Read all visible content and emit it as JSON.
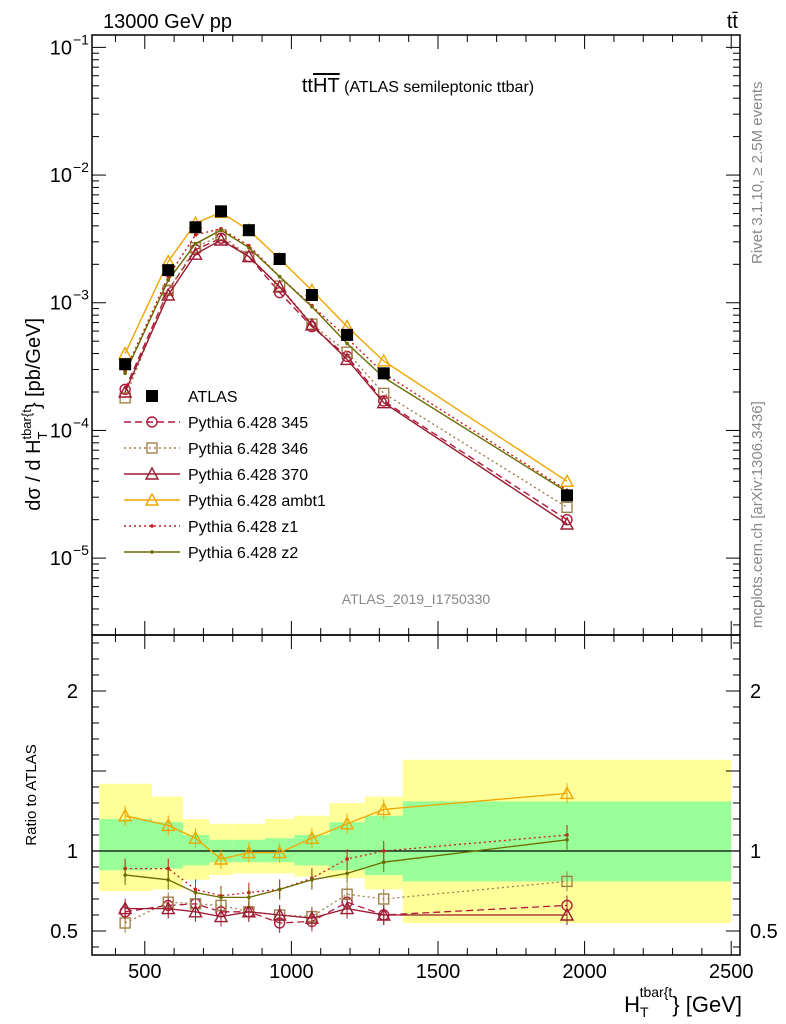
{
  "header": {
    "left": "13000 GeV pp",
    "right": "tt̄"
  },
  "side_labels": {
    "rivet": "Rivet 3.1.10, ≥ 2.5M events",
    "mcplots": "mcplots.cern.ch [arXiv:1306.3436]"
  },
  "chart_data": [
    {
      "type": "line",
      "title": "tt̅H̅T̅ (ATLAS semileptonic ttbar)",
      "title_main": "tt",
      "title_over": "HT",
      "title_rest": " (ATLAS semileptonic ttbar)",
      "analysis_id": "ATLAS_2019_I1750330",
      "ylabel": "dσ / d H_T^{tbar{t}} [pb/GeV]",
      "ylabel_main": "dσ / d H",
      "ylabel_sub": "T",
      "ylabel_sup": "tbar{t",
      "ylabel_tail": "} [pb/GeV]",
      "yscale": "log",
      "ylim": [
        2.5e-06,
        0.125
      ],
      "xlim": [
        320,
        2530
      ],
      "yticks": [
        {
          "v": 1e-05,
          "base": "10",
          "exp": "−5"
        },
        {
          "v": 0.0001,
          "base": "10",
          "exp": "−4"
        },
        {
          "v": 0.001,
          "base": "10",
          "exp": "−3"
        },
        {
          "v": 0.01,
          "base": "10",
          "exp": "−2"
        },
        {
          "v": 0.1,
          "base": "10",
          "exp": "−1"
        }
      ],
      "legend_position": "bottom-left",
      "x": [
        433,
        580,
        673,
        760,
        855,
        960,
        1070,
        1190,
        1315,
        1940
      ],
      "series": [
        {
          "name": "ATLAS",
          "color": "#000000",
          "marker": "square",
          "line": "none",
          "values": [
            0.00033,
            0.0018,
            0.0039,
            0.0052,
            0.0037,
            0.0022,
            0.00115,
            0.00056,
            0.00028,
            3.1e-05
          ]
        },
        {
          "name": "Pythia 6.428 345",
          "color": "#b2183b",
          "marker": "circle",
          "line": "dashed",
          "values": [
            0.00021,
            0.00125,
            0.0026,
            0.0032,
            0.0023,
            0.0012,
            0.00065,
            0.00038,
            0.00017,
            2e-05
          ]
        },
        {
          "name": "Pythia 6.428 346",
          "color": "#a0804a",
          "marker": "square-open",
          "line": "dotted",
          "values": [
            0.00018,
            0.00125,
            0.0027,
            0.0034,
            0.0023,
            0.00135,
            0.00068,
            0.00041,
            0.000195,
            2.5e-05
          ]
        },
        {
          "name": "Pythia 6.428 370",
          "color": "#9b1b30",
          "marker": "triangle",
          "line": "solid",
          "values": [
            0.0002,
            0.00115,
            0.0024,
            0.0031,
            0.0023,
            0.00133,
            0.00067,
            0.00036,
            0.000165,
            1.85e-05
          ]
        },
        {
          "name": "Pythia 6.428 ambt1",
          "color": "#f0a500",
          "marker": "triangle",
          "line": "solid",
          "values": [
            0.0004,
            0.0021,
            0.0042,
            0.0051,
            0.0037,
            0.0022,
            0.00125,
            0.00065,
            0.00035,
            4e-05
          ]
        },
        {
          "name": "Pythia 6.428 z1",
          "color": "#cc1a1a",
          "marker": "dot",
          "line": "dotted",
          "values": [
            0.00029,
            0.0016,
            0.0034,
            0.0038,
            0.0028,
            0.0016,
            0.00095,
            0.00053,
            0.00028,
            3.4e-05
          ]
        },
        {
          "name": "Pythia 6.428 z2",
          "color": "#6b6b00",
          "marker": "dot",
          "line": "solid",
          "values": [
            0.00028,
            0.0015,
            0.0029,
            0.0037,
            0.0027,
            0.0016,
            0.00093,
            0.00048,
            0.00026,
            3.3e-05
          ]
        }
      ]
    },
    {
      "type": "line",
      "ylabel": "Ratio to ATLAS",
      "xlabel": "H_T^{tbar{t}} [GeV]",
      "xlabel_main": "H",
      "xlabel_sub": "T",
      "xlabel_sup": "tbar{t",
      "xlabel_tail": "} [GeV]",
      "ylim": [
        0.35,
        2.35
      ],
      "xlim": [
        320,
        2530
      ],
      "yticks": [
        0.5,
        1,
        2
      ],
      "xticks": [
        500,
        1000,
        1500,
        2000,
        2500
      ],
      "bands": {
        "edges": [
          345,
          525,
          630,
          720,
          800,
          910,
          1010,
          1130,
          1250,
          1380,
          2500
        ],
        "yellow_lo": [
          0.75,
          0.76,
          0.82,
          0.85,
          0.86,
          0.86,
          0.84,
          0.83,
          0.76,
          0.55
        ],
        "yellow_hi": [
          1.42,
          1.34,
          1.2,
          1.17,
          1.17,
          1.2,
          1.22,
          1.3,
          1.34,
          1.57
        ],
        "green_lo": [
          0.88,
          0.89,
          0.91,
          0.93,
          0.93,
          0.93,
          0.91,
          0.88,
          0.85,
          0.81
        ],
        "green_hi": [
          1.2,
          1.18,
          1.1,
          1.07,
          1.07,
          1.08,
          1.1,
          1.18,
          1.22,
          1.31
        ]
      },
      "x": [
        433,
        580,
        673,
        760,
        855,
        960,
        1070,
        1190,
        1315,
        1940
      ],
      "series": [
        {
          "name": "Pythia 6.428 345",
          "values": [
            0.62,
            0.66,
            0.67,
            0.62,
            0.62,
            0.55,
            0.56,
            0.68,
            0.6,
            0.66
          ]
        },
        {
          "name": "Pythia 6.428 346",
          "values": [
            0.55,
            0.68,
            0.67,
            0.66,
            0.62,
            0.6,
            0.59,
            0.73,
            0.7,
            0.81
          ]
        },
        {
          "name": "Pythia 6.428 370",
          "values": [
            0.64,
            0.64,
            0.62,
            0.59,
            0.62,
            0.6,
            0.58,
            0.64,
            0.6,
            0.6
          ]
        },
        {
          "name": "Pythia 6.428 ambt1",
          "values": [
            1.22,
            1.16,
            1.08,
            0.95,
            0.99,
            0.99,
            1.08,
            1.17,
            1.26,
            1.36
          ]
        },
        {
          "name": "Pythia 6.428 z1",
          "values": [
            0.89,
            0.89,
            0.76,
            0.72,
            0.74,
            0.76,
            0.83,
            0.95,
            1.0,
            1.1
          ]
        },
        {
          "name": "Pythia 6.428 z2",
          "values": [
            0.85,
            0.82,
            0.74,
            0.71,
            0.71,
            0.76,
            0.82,
            0.86,
            0.93,
            1.07
          ]
        }
      ]
    }
  ]
}
